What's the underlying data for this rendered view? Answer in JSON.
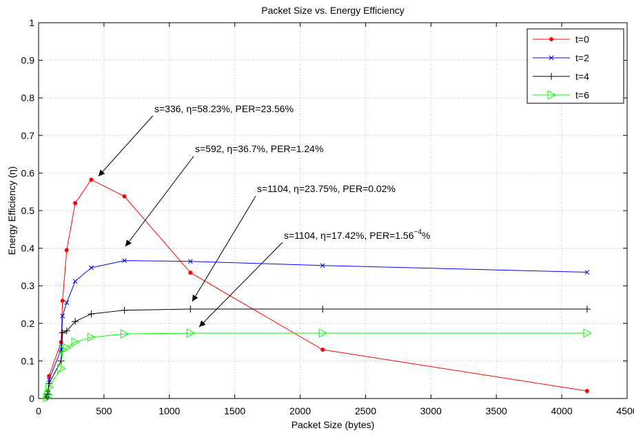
{
  "chart_data": {
    "type": "line",
    "title": "Packet Size vs. Energy Efficiency",
    "x_label": "Packet Size (bytes)",
    "y_label": "Energy Efficiency (η)",
    "x": [
      64,
      72,
      80,
      172,
      183,
      215,
      280,
      403,
      656,
      1161,
      2172,
      4194
    ],
    "series": [
      {
        "name": "t=0",
        "color": "#ff0000",
        "marker": "o",
        "values": [
          0.005,
          0.02,
          0.06,
          0.15,
          0.26,
          0.395,
          0.52,
          0.5823,
          0.538,
          0.335,
          0.13,
          0.02
        ]
      },
      {
        "name": "t=2",
        "color": "#0000ff",
        "marker": "x",
        "values": [
          0.004,
          0.015,
          0.05,
          0.13,
          0.22,
          0.255,
          0.312,
          0.348,
          0.367,
          0.365,
          0.354,
          0.336
        ]
      },
      {
        "name": "t=4",
        "color": "#000000",
        "marker": "+",
        "values": [
          0.003,
          0.012,
          0.04,
          0.1,
          0.175,
          0.18,
          0.205,
          0.225,
          0.235,
          0.238,
          0.238,
          0.238
        ]
      },
      {
        "name": "t=6",
        "color": "#00ff00",
        "marker": ">",
        "values": [
          0.002,
          0.01,
          0.03,
          0.08,
          0.13,
          0.135,
          0.15,
          0.163,
          0.172,
          0.174,
          0.174,
          0.174
        ]
      }
    ],
    "xlim": [
      0,
      4500
    ],
    "xticks": [
      0,
      500,
      1000,
      1500,
      2000,
      2500,
      3000,
      3500,
      4000,
      4500
    ],
    "ylim": [
      0,
      1
    ],
    "yticks": [
      0,
      0.1,
      0.2,
      0.3,
      0.4,
      0.5,
      0.6,
      0.7,
      0.8,
      0.9,
      1
    ],
    "grid": true,
    "legend": "upper right",
    "annotations": [
      {
        "text": "s=336, η=58.23%, PER=23.56%"
      },
      {
        "text": "s=592, η=36.7%, PER=1.24%"
      },
      {
        "text": "s=1104, η=23.75%, PER=0.02%"
      },
      {
        "text": "s=1104, η=17.42%, PER=1.56",
        "superscript": "−4",
        "suffix": "%"
      }
    ]
  }
}
